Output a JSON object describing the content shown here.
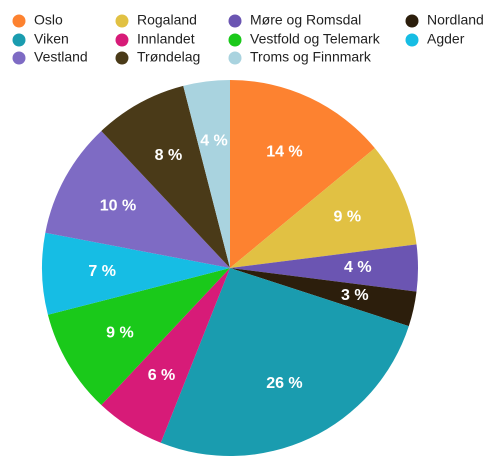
{
  "chart_data": {
    "type": "pie",
    "categories": [
      "Oslo",
      "Rogaland",
      "Møre og Romsdal",
      "Nordland",
      "Viken",
      "Innlandet",
      "Vestfold og Telemark",
      "Agder",
      "Vestland",
      "Trøndelag",
      "Troms og Finnmark"
    ],
    "values": [
      14,
      9,
      4,
      3,
      26,
      6,
      9,
      7,
      10,
      8,
      4
    ],
    "value_labels": [
      "14 %",
      "9 %",
      "4 %",
      "3 %",
      "26 %",
      "6 %",
      "9 %",
      "7 %",
      "10 %",
      "8 %",
      "4 %"
    ],
    "colors": [
      "#fd8230",
      "#e1c143",
      "#6b55b2",
      "#2c1e0c",
      "#1a9caf",
      "#d71b78",
      "#1ac91a",
      "#16bde4",
      "#7e6bc4",
      "#4a3a18",
      "#a9d3df"
    ],
    "legend": "top"
  }
}
